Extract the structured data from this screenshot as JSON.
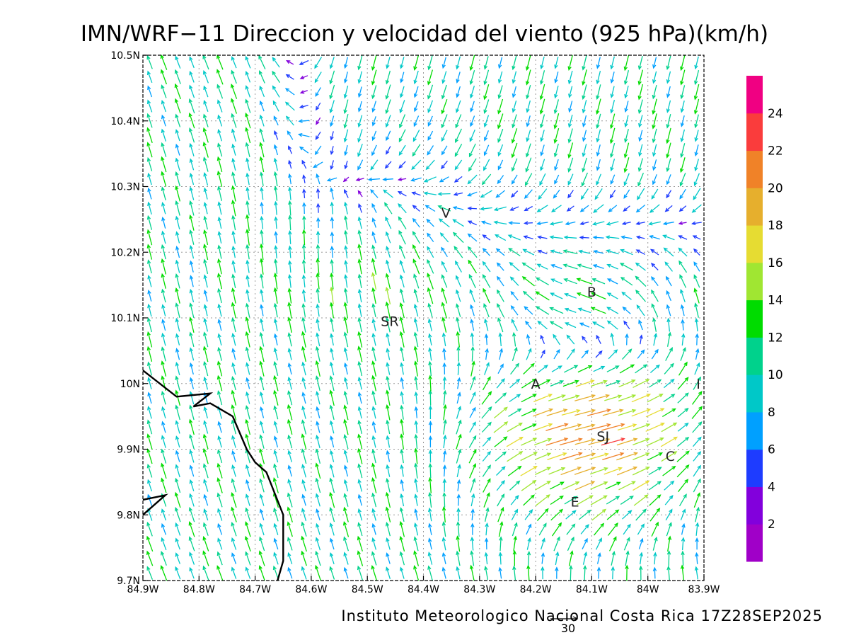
{
  "title": "IMN/WRF−11 Direccion y velocidad del viento (925 hPa)(km/h)",
  "footer": "Instituto Meteorologico Nacional Costa Rica 17Z28SEP2025",
  "reference_vector_label": "30",
  "map": {
    "lon_range": [
      -84.9,
      -83.9
    ],
    "lat_range": [
      9.7,
      10.5
    ],
    "x_tick_labels": [
      "84.9W",
      "84.8W",
      "84.7W",
      "84.6W",
      "84.5W",
      "84.4W",
      "84.3W",
      "84.2W",
      "84.1W",
      "84W",
      "83.9W"
    ],
    "y_tick_labels": [
      "9.7N",
      "9.8N",
      "9.9N",
      "10N",
      "10.1N",
      "10.2N",
      "10.3N",
      "10.4N",
      "10.5N"
    ],
    "grid": true,
    "places": [
      {
        "label": "V",
        "lon": -84.36,
        "lat": 10.26
      },
      {
        "label": "B",
        "lon": -84.1,
        "lat": 10.14
      },
      {
        "label": "SR",
        "lon": -84.46,
        "lat": 10.095
      },
      {
        "label": "A",
        "lon": -84.2,
        "lat": 10.0
      },
      {
        "label": "I",
        "lon": -83.91,
        "lat": 10.0
      },
      {
        "label": "SJ",
        "lon": -84.08,
        "lat": 9.92
      },
      {
        "label": "C",
        "lon": -83.96,
        "lat": 9.89
      },
      {
        "label": "E",
        "lon": -84.13,
        "lat": 9.82
      }
    ],
    "coastlines": [
      [
        [
          -84.9,
          10.02
        ],
        [
          -84.84,
          9.98
        ],
        [
          -84.78,
          9.985
        ],
        [
          -84.81,
          9.965
        ],
        [
          -84.78,
          9.97
        ],
        [
          -84.74,
          9.95
        ],
        [
          -84.715,
          9.9
        ],
        [
          -84.7,
          9.88
        ],
        [
          -84.68,
          9.865
        ],
        [
          -84.65,
          9.8
        ],
        [
          -84.65,
          9.73
        ],
        [
          -84.66,
          9.7
        ]
      ],
      [
        [
          -84.9,
          9.8
        ],
        [
          -84.86,
          9.83
        ],
        [
          -84.9,
          9.823
        ]
      ]
    ]
  },
  "colorbar": {
    "colors": [
      "#a000c8",
      "#8200dc",
      "#1e3cff",
      "#00a0ff",
      "#00c8c8",
      "#00d28c",
      "#00dc00",
      "#a0e632",
      "#e6dc32",
      "#e6af2d",
      "#f08228",
      "#fa3c3c",
      "#f00082"
    ],
    "tick_labels": [
      "2",
      "4",
      "6",
      "8",
      "10",
      "12",
      "14",
      "16",
      "18",
      "20",
      "22",
      "24"
    ],
    "min": 0,
    "max": 26,
    "step": 2
  }
}
